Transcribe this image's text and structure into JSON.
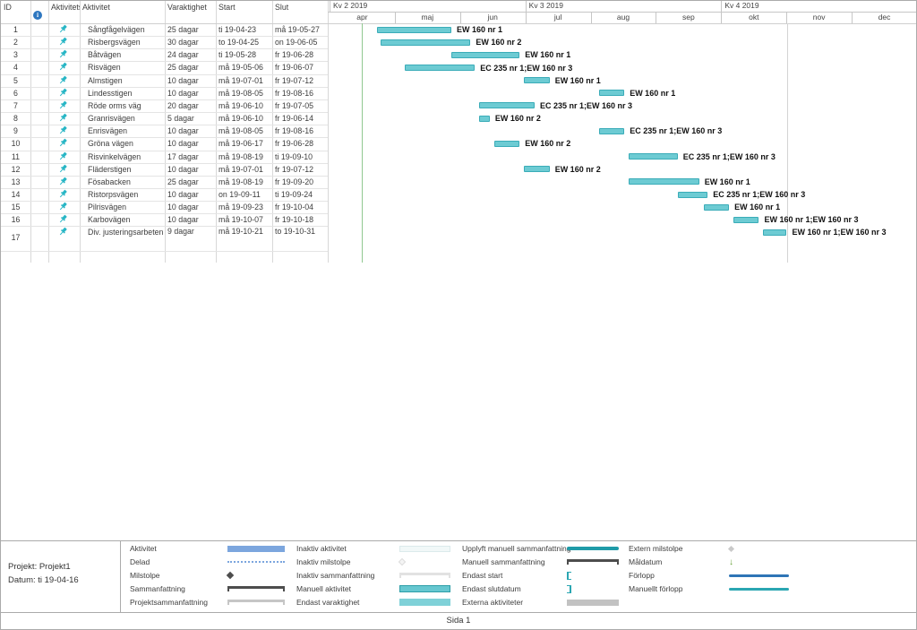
{
  "table": {
    "headers": {
      "id": "ID",
      "mode": "Aktivitetsl",
      "name": "Aktivitet",
      "duration": "Varaktighet",
      "start": "Start",
      "finish": "Slut"
    },
    "rows": [
      {
        "id": "1",
        "name": "Sångfågelvägen",
        "duration": "25 dagar",
        "start": "ti 19-04-23",
        "finish": "må 19-05-27",
        "bar_start": "2019-04-23",
        "bar_end": "2019-05-27",
        "bar_label": "EW 160 nr 1"
      },
      {
        "id": "2",
        "name": "Risbergsvägen",
        "duration": "30 dagar",
        "start": "to 19-04-25",
        "finish": "on 19-06-05",
        "bar_start": "2019-04-25",
        "bar_end": "2019-06-05",
        "bar_label": "EW 160 nr 2"
      },
      {
        "id": "3",
        "name": "Båtvägen",
        "duration": "24 dagar",
        "start": "ti 19-05-28",
        "finish": "fr 19-06-28",
        "bar_start": "2019-05-28",
        "bar_end": "2019-06-28",
        "bar_label": "EW 160 nr 1"
      },
      {
        "id": "4",
        "name": "Risvägen",
        "duration": "25 dagar",
        "start": "må 19-05-06",
        "finish": "fr 19-06-07",
        "bar_start": "2019-05-06",
        "bar_end": "2019-06-07",
        "bar_label": "EC 235 nr 1;EW 160 nr 3"
      },
      {
        "id": "5",
        "name": "Almstigen",
        "duration": "10 dagar",
        "start": "må 19-07-01",
        "finish": "fr 19-07-12",
        "bar_start": "2019-07-01",
        "bar_end": "2019-07-12",
        "bar_label": "EW 160 nr 1"
      },
      {
        "id": "6",
        "name": "Lindesstigen",
        "duration": "10 dagar",
        "start": "må 19-08-05",
        "finish": "fr 19-08-16",
        "bar_start": "2019-08-05",
        "bar_end": "2019-08-16",
        "bar_label": "EW 160 nr 1"
      },
      {
        "id": "7",
        "name": "Röde orms väg",
        "duration": "20 dagar",
        "start": "må 19-06-10",
        "finish": "fr 19-07-05",
        "bar_start": "2019-06-10",
        "bar_end": "2019-07-05",
        "bar_label": "EC 235 nr 1;EW 160 nr 3"
      },
      {
        "id": "8",
        "name": "Granrisvägen",
        "duration": "5 dagar",
        "start": "må 19-06-10",
        "finish": "fr 19-06-14",
        "bar_start": "2019-06-10",
        "bar_end": "2019-06-14",
        "bar_label": "EW 160 nr 2"
      },
      {
        "id": "9",
        "name": "Enrisvägen",
        "duration": "10 dagar",
        "start": "må 19-08-05",
        "finish": "fr 19-08-16",
        "bar_start": "2019-08-05",
        "bar_end": "2019-08-16",
        "bar_label": "EC 235 nr 1;EW 160 nr 3"
      },
      {
        "id": "10",
        "name": "Gröna vägen",
        "duration": "10 dagar",
        "start": "må 19-06-17",
        "finish": "fr 19-06-28",
        "bar_start": "2019-06-17",
        "bar_end": "2019-06-28",
        "bar_label": "EW 160 nr 2"
      },
      {
        "id": "11",
        "name": "Risvinkelvägen",
        "duration": "17 dagar",
        "start": "må 19-08-19",
        "finish": "ti 19-09-10",
        "bar_start": "2019-08-19",
        "bar_end": "2019-09-10",
        "bar_label": "EC 235 nr 1;EW 160 nr 3"
      },
      {
        "id": "12",
        "name": "Fläderstigen",
        "duration": "10 dagar",
        "start": "må 19-07-01",
        "finish": "fr 19-07-12",
        "bar_start": "2019-07-01",
        "bar_end": "2019-07-12",
        "bar_label": "EW 160 nr 2"
      },
      {
        "id": "13",
        "name": "Fösabacken",
        "duration": "25 dagar",
        "start": "må 19-08-19",
        "finish": "fr 19-09-20",
        "bar_start": "2019-08-19",
        "bar_end": "2019-09-20",
        "bar_label": "EW 160 nr 1"
      },
      {
        "id": "14",
        "name": "Ristorpsvägen",
        "duration": "10 dagar",
        "start": "on 19-09-11",
        "finish": "ti 19-09-24",
        "bar_start": "2019-09-11",
        "bar_end": "2019-09-24",
        "bar_label": "EC 235 nr 1;EW 160 nr 3"
      },
      {
        "id": "15",
        "name": "Pilrisvägen",
        "duration": "10 dagar",
        "start": "må 19-09-23",
        "finish": "fr 19-10-04",
        "bar_start": "2019-09-23",
        "bar_end": "2019-10-04",
        "bar_label": "EW 160 nr 1"
      },
      {
        "id": "16",
        "name": "Karbovägen",
        "duration": "10 dagar",
        "start": "må 19-10-07",
        "finish": "fr 19-10-18",
        "bar_start": "2019-10-07",
        "bar_end": "2019-10-18",
        "bar_label": "EW 160 nr 1;EW 160 nr 3"
      },
      {
        "id": "17",
        "name": "Div. justeringsarbeten",
        "duration": "9 dagar",
        "start": "må 19-10-21",
        "finish": "to 19-10-31",
        "bar_start": "2019-10-21",
        "bar_end": "2019-10-31",
        "bar_label": "EW 160 nr 1;EW 160 nr 3"
      }
    ]
  },
  "timeline": {
    "quarters": [
      "Kv 2 2019",
      "Kv 3 2019",
      "Kv 4 2019"
    ],
    "months": [
      "apr",
      "maj",
      "jun",
      "jul",
      "aug",
      "sep",
      "okt",
      "nov",
      "dec"
    ],
    "start_iso": "2019-04-01",
    "end_iso": "2020-01-01",
    "status_date_iso": "2019-04-16",
    "page_break_iso": "2019-11-01"
  },
  "project_info": {
    "line1": "Projekt: Projekt1",
    "line2": "Datum: ti 19-04-16"
  },
  "legend": {
    "columns": [
      {
        "items": [
          {
            "label": "Aktivitet",
            "symbol": "bar-blue"
          },
          {
            "label": "Delad",
            "symbol": "line-dotted-blue"
          },
          {
            "label": "Milstolpe",
            "symbol": "diamond-dark"
          },
          {
            "label": "Sammanfattning",
            "symbol": "bracket-dark"
          },
          {
            "label": "Projektsammanfattning",
            "symbol": "bracket-light"
          }
        ]
      },
      {
        "items": [
          {
            "label": "Inaktiv aktivitet",
            "symbol": "bar-inactive"
          },
          {
            "label": "Inaktiv milstolpe",
            "symbol": "diamond-pale"
          },
          {
            "label": "Inaktiv sammanfattning",
            "symbol": "bracket-pale"
          },
          {
            "label": "Manuell aktivitet",
            "symbol": "bar-teal"
          },
          {
            "label": "Endast varaktighet",
            "symbol": "bar-teal-light"
          }
        ]
      },
      {
        "items": [
          {
            "label": "Upplyft manuell sammanfattning",
            "symbol": "line-teal-thick"
          },
          {
            "label": "Manuell sammanfattning",
            "symbol": "bracket-dark2"
          },
          {
            "label": "Endast start",
            "symbol": "bracket-open-teal"
          },
          {
            "label": "Endast slutdatum",
            "symbol": "bracket-close-teal"
          },
          {
            "label": "Externa aktiviteter",
            "symbol": "bar-gray"
          }
        ]
      },
      {
        "items": [
          {
            "label": "Extern milstolpe",
            "symbol": "diamond-gray"
          },
          {
            "label": "Måldatum",
            "symbol": "arrow-green-down"
          },
          {
            "label": "Förlopp",
            "symbol": "line-blue"
          },
          {
            "label": "Manuellt förlopp",
            "symbol": "line-teal"
          }
        ]
      }
    ]
  },
  "footer": {
    "page_label": "Sida 1"
  },
  "icons": {
    "info": "info-icon",
    "pin": "pin-icon",
    "target_arrow": "↓"
  },
  "colors": {
    "bar_fill": "#6DCBD3",
    "bar_border": "#3AACB8",
    "status_line_green": "#90C890",
    "legend_activity_blue": "#7CA6DE",
    "progress_blue": "#2E75B6",
    "manual_teal": "#2AA6B2",
    "teal_dark": "#1F9BA8",
    "target_green": "#69A23B",
    "info_blue": "#2E77C0",
    "pin_teal": "#29B6C5",
    "external_gray": "#C2C2C2"
  }
}
